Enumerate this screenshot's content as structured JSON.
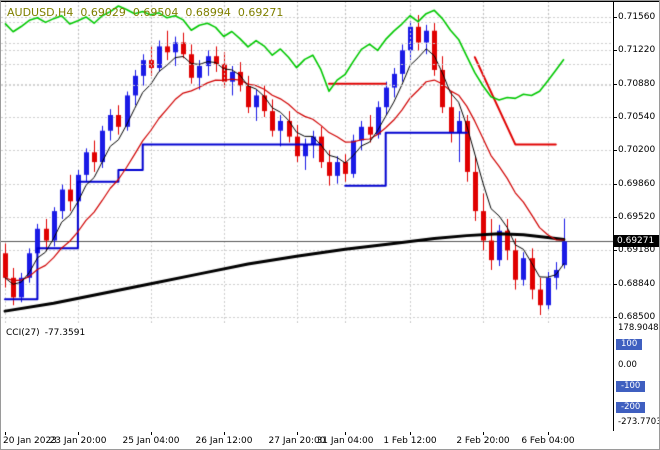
{
  "header": {
    "symbol": "AUDUSD,H4",
    "open": "0.69029",
    "high": "0.69504",
    "low": "0.68994",
    "close": "0.69271"
  },
  "colors": {
    "background": "#ffffff",
    "grid": "#cdcdcd",
    "title_text": "#808000",
    "axis_text": "#000000",
    "up_candle": "#1a1ae6",
    "down_candle": "#e00000",
    "ma_fast": "#000000",
    "ma_medium": "#d00000",
    "ma_slow": "#000000",
    "trail_blue": "#0000d0",
    "trail_red": "#e00000",
    "cci_line": "#00c800",
    "level_box": "#3f5fc0",
    "current_price_box": "#000000",
    "current_price_line": "#555555",
    "separator": "#000000"
  },
  "price_axis": {
    "labels": [
      "0.71560",
      "0.71220",
      "0.70880",
      "0.70540",
      "0.70200",
      "0.69860",
      "0.69520",
      "0.69180",
      "0.68840",
      "0.68500"
    ],
    "current": "0.69271"
  },
  "time_axis": {
    "ticks": [
      {
        "label": "20 Jan 2023",
        "bar": 0
      },
      {
        "label": "23 Jan 20:00",
        "bar": 9
      },
      {
        "label": "25 Jan 04:00",
        "bar": 18
      },
      {
        "label": "26 Jan 12:00",
        "bar": 27
      },
      {
        "label": "27 Jan 20:00",
        "bar": 36
      },
      {
        "label": "31 Jan 04:00",
        "bar": 42
      },
      {
        "label": "1 Feb 12:00",
        "bar": 50
      },
      {
        "label": "2 Feb 20:00",
        "bar": 59
      },
      {
        "label": "6 Feb 04:00",
        "bar": 67
      }
    ]
  },
  "indicator": {
    "name": "CCI(27)",
    "value": "-77.3591"
  },
  "cci_axis": [
    {
      "label": "178.9048",
      "value": 178.9048,
      "boxed": false
    },
    {
      "label": "100",
      "value": 100,
      "boxed": true
    },
    {
      "label": "0.00",
      "value": 0,
      "boxed": false
    },
    {
      "label": "-100",
      "value": -100,
      "boxed": true
    },
    {
      "label": "-200",
      "value": -200,
      "boxed": true
    },
    {
      "label": "-273.7703",
      "value": -273.7703,
      "boxed": false
    }
  ],
  "chart_data": {
    "type": "candlestick",
    "title": "AUDUSD,H4",
    "symbol": "AUDUSD",
    "timeframe": "H4",
    "price_range": [
      0.685,
      0.7156
    ],
    "current_price": 0.69271,
    "grid": "dashed",
    "ohlc": [
      [
        0.6915,
        0.6925,
        0.688,
        0.689
      ],
      [
        0.689,
        0.69,
        0.6862,
        0.687
      ],
      [
        0.687,
        0.6895,
        0.6865,
        0.689
      ],
      [
        0.689,
        0.692,
        0.6885,
        0.6915
      ],
      [
        0.6915,
        0.6945,
        0.691,
        0.694
      ],
      [
        0.694,
        0.695,
        0.6918,
        0.6928
      ],
      [
        0.6928,
        0.6962,
        0.6922,
        0.6958
      ],
      [
        0.6958,
        0.6985,
        0.695,
        0.698
      ],
      [
        0.698,
        0.6995,
        0.6958,
        0.6968
      ],
      [
        0.6968,
        0.7,
        0.6962,
        0.6995
      ],
      [
        0.6995,
        0.7022,
        0.6988,
        0.7018
      ],
      [
        0.7018,
        0.703,
        0.6998,
        0.7008
      ],
      [
        0.7008,
        0.7045,
        0.7002,
        0.704
      ],
      [
        0.704,
        0.7062,
        0.703,
        0.7056
      ],
      [
        0.7056,
        0.7066,
        0.7036,
        0.7044
      ],
      [
        0.7044,
        0.708,
        0.704,
        0.7076
      ],
      [
        0.7076,
        0.7102,
        0.7066,
        0.7096
      ],
      [
        0.7096,
        0.7118,
        0.7086,
        0.7112
      ],
      [
        0.7112,
        0.7126,
        0.7096,
        0.7104
      ],
      [
        0.7104,
        0.7132,
        0.71,
        0.7126
      ],
      [
        0.7126,
        0.7142,
        0.7112,
        0.712
      ],
      [
        0.712,
        0.7136,
        0.7106,
        0.713
      ],
      [
        0.713,
        0.714,
        0.7114,
        0.7118
      ],
      [
        0.7118,
        0.7128,
        0.7088,
        0.7094
      ],
      [
        0.7094,
        0.7112,
        0.7082,
        0.7106
      ],
      [
        0.7106,
        0.7122,
        0.7096,
        0.7116
      ],
      [
        0.7116,
        0.7126,
        0.71,
        0.7108
      ],
      [
        0.7108,
        0.712,
        0.7084,
        0.709
      ],
      [
        0.709,
        0.7106,
        0.7076,
        0.71
      ],
      [
        0.71,
        0.711,
        0.708,
        0.7086
      ],
      [
        0.7086,
        0.7096,
        0.7058,
        0.7064
      ],
      [
        0.7064,
        0.7082,
        0.705,
        0.7076
      ],
      [
        0.7076,
        0.7086,
        0.7054,
        0.706
      ],
      [
        0.706,
        0.7072,
        0.7034,
        0.704
      ],
      [
        0.704,
        0.7056,
        0.7024,
        0.705
      ],
      [
        0.705,
        0.706,
        0.7028,
        0.7034
      ],
      [
        0.7034,
        0.7046,
        0.7008,
        0.7014
      ],
      [
        0.7014,
        0.7032,
        0.7,
        0.7026
      ],
      [
        0.7026,
        0.704,
        0.7012,
        0.7034
      ],
      [
        0.7034,
        0.7044,
        0.7002,
        0.7008
      ],
      [
        0.7008,
        0.702,
        0.6984,
        0.6994
      ],
      [
        0.6994,
        0.7014,
        0.6986,
        0.7008
      ],
      [
        0.7008,
        0.7016,
        0.6988,
        0.6996
      ],
      [
        0.6996,
        0.7036,
        0.6992,
        0.703
      ],
      [
        0.703,
        0.705,
        0.702,
        0.7044
      ],
      [
        0.7044,
        0.7056,
        0.7028,
        0.7036
      ],
      [
        0.7036,
        0.707,
        0.7032,
        0.7064
      ],
      [
        0.7064,
        0.709,
        0.7056,
        0.7084
      ],
      [
        0.7084,
        0.7104,
        0.7074,
        0.7098
      ],
      [
        0.7098,
        0.7128,
        0.709,
        0.7122
      ],
      [
        0.7122,
        0.7152,
        0.7112,
        0.7146
      ],
      [
        0.7146,
        0.7158,
        0.7122,
        0.713
      ],
      [
        0.713,
        0.7148,
        0.7118,
        0.7142
      ],
      [
        0.7142,
        0.715,
        0.7096,
        0.7102
      ],
      [
        0.7102,
        0.7116,
        0.7058,
        0.7064
      ],
      [
        0.7064,
        0.708,
        0.7028,
        0.7038
      ],
      [
        0.7038,
        0.706,
        0.7008,
        0.705
      ],
      [
        0.705,
        0.7056,
        0.6988,
        0.6998
      ],
      [
        0.6998,
        0.7014,
        0.6948,
        0.6958
      ],
      [
        0.6958,
        0.6976,
        0.6918,
        0.6928
      ],
      [
        0.6928,
        0.695,
        0.6898,
        0.6908
      ],
      [
        0.6908,
        0.6944,
        0.6902,
        0.6938
      ],
      [
        0.6938,
        0.695,
        0.6908,
        0.6918
      ],
      [
        0.6918,
        0.693,
        0.6878,
        0.6888
      ],
      [
        0.6888,
        0.6916,
        0.6882,
        0.691
      ],
      [
        0.691,
        0.692,
        0.6868,
        0.6878
      ],
      [
        0.6878,
        0.689,
        0.6852,
        0.6862
      ],
      [
        0.6862,
        0.6896,
        0.6858,
        0.689
      ],
      [
        0.689,
        0.6906,
        0.6878,
        0.6898
      ],
      [
        0.69029,
        0.69504,
        0.68994,
        0.69271
      ]
    ],
    "overlays": {
      "ma_fast_period": 5,
      "ma_medium_period": 13,
      "ma_slow_points": [
        [
          0,
          0.6856
        ],
        [
          6,
          0.6864
        ],
        [
          12,
          0.6874
        ],
        [
          18,
          0.6884
        ],
        [
          24,
          0.6894
        ],
        [
          30,
          0.6904
        ],
        [
          36,
          0.6912
        ],
        [
          42,
          0.6919
        ],
        [
          48,
          0.6925
        ],
        [
          53,
          0.693
        ],
        [
          57,
          0.6933
        ],
        [
          61,
          0.6935
        ],
        [
          64,
          0.6934
        ],
        [
          67,
          0.6931
        ],
        [
          69,
          0.6929
        ]
      ],
      "trail_blue": [
        [
          [
            0,
            0.6868
          ],
          [
            4,
            0.6868
          ],
          [
            4,
            0.692
          ],
          [
            9,
            0.692
          ],
          [
            9,
            0.6988
          ],
          [
            14,
            0.6988
          ],
          [
            14,
            0.7
          ],
          [
            17,
            0.7
          ],
          [
            17,
            0.7026
          ],
          [
            39,
            0.7026
          ]
        ],
        [
          [
            42,
            0.6984
          ],
          [
            47,
            0.6984
          ],
          [
            47,
            0.7038
          ],
          [
            57,
            0.7038
          ]
        ]
      ],
      "trail_red": [
        [
          [
            40,
            0.7088
          ],
          [
            47,
            0.7088
          ]
        ],
        [
          [
            58,
            0.7115
          ],
          [
            63,
            0.7026
          ],
          [
            68,
            0.7026
          ]
        ]
      ]
    },
    "cci": {
      "period": 27,
      "current": -77.3591,
      "range": [
        -273.7703,
        178.9048
      ],
      "levels": [
        100,
        0,
        -100,
        -200
      ],
      "values": [
        95,
        55,
        80,
        110,
        122,
        100,
        118,
        132,
        92,
        108,
        126,
        96,
        132,
        152,
        178.9,
        162,
        142,
        152,
        136,
        146,
        122,
        132,
        112,
        62,
        86,
        96,
        76,
        32,
        56,
        22,
        -18,
        12,
        -14,
        -58,
        -28,
        -68,
        -118,
        -78,
        -58,
        -128,
        -232,
        -178,
        -150,
        -88,
        -30,
        -5,
        -35,
        18,
        58,
        92,
        132,
        104,
        142,
        158,
        118,
        62,
        18,
        -62,
        -142,
        -205,
        -258,
        -273.77,
        -262,
        -266,
        -246,
        -252,
        -232,
        -182,
        -130,
        -77.3591
      ]
    }
  }
}
